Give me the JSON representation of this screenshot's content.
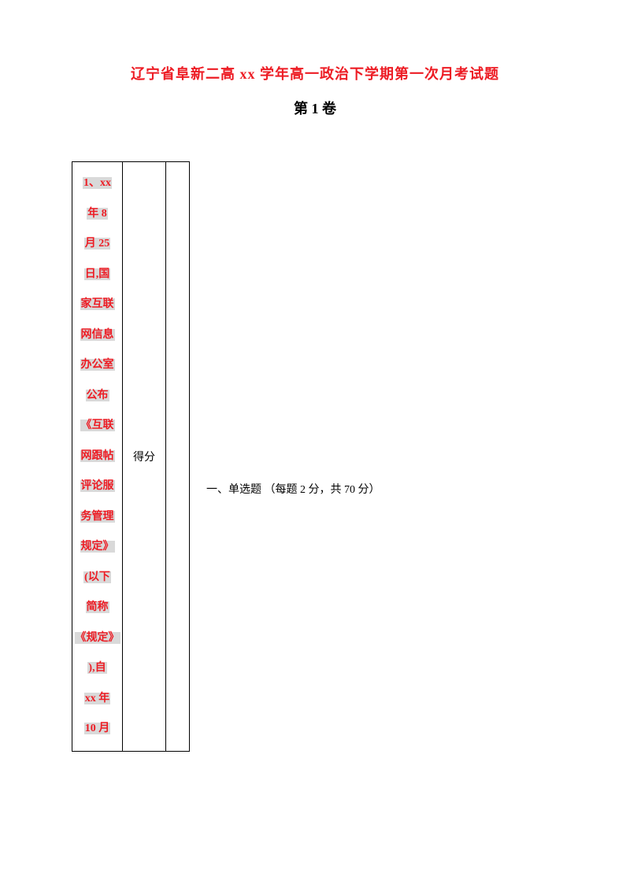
{
  "doc": {
    "title": "辽宁省阜新二高 xx 学年高一政治下学期第一次月考试题",
    "subtitle": "第 1 卷",
    "score_label": "得分",
    "section_heading": "一、单选题 （每题 2 分，共 70 分）",
    "question_segments": [
      "1、xx",
      "年 8",
      "月 25",
      "日,国",
      "家互联",
      "网信息",
      "办公室",
      "公布",
      "《互联",
      "网跟帖",
      "评论服",
      "务管理",
      "规定》",
      "(以下",
      "简称",
      "《规定》",
      "),自",
      "xx 年",
      "10 月"
    ],
    "colors": {
      "title_red": "#ed1c24",
      "highlight_bg": "#d9d9d9",
      "text_black": "#000000",
      "border": "#000000",
      "page_bg": "#ffffff"
    },
    "font_sizes": {
      "title": 18,
      "subtitle": 18,
      "body": 14
    }
  }
}
